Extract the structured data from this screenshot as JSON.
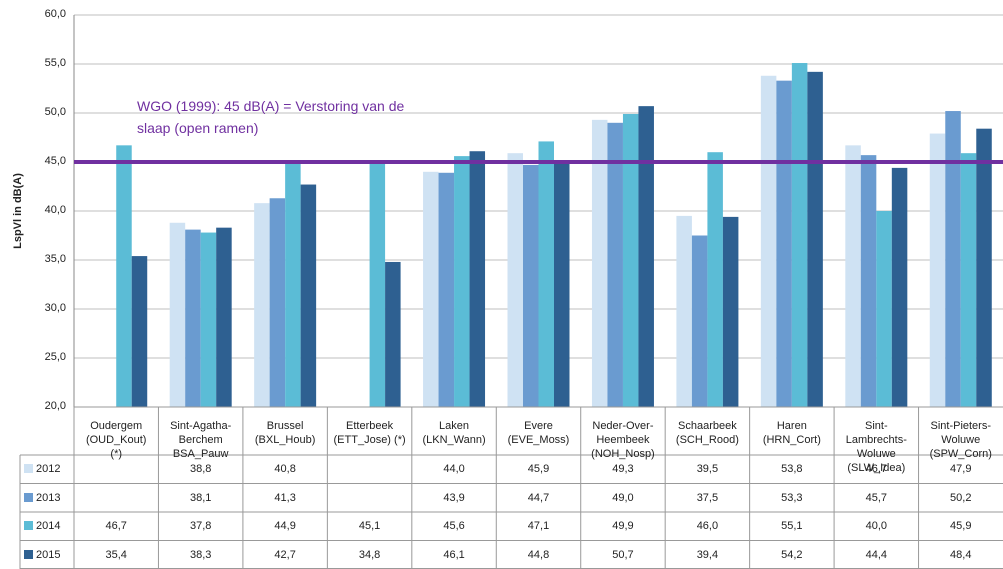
{
  "chart_data": {
    "type": "bar",
    "y_label": "LspVl in dB(A)",
    "categories": [
      "Oudergem\n(OUD_Kout)\n(*)",
      "Sint-Agatha-\nBerchem\nBSA_Pauw",
      "Brussel\n(BXL_Houb)",
      "Etterbeek\n(ETT_Jose) (*)",
      "Laken\n(LKN_Wann)",
      "Evere\n(EVE_Moss)",
      "Neder-Over-\nHeembeek\n(NOH_Nosp)",
      "Schaarbeek\n(SCH_Rood)",
      "Haren\n(HRN_Cort)",
      "Sint-\nLambrechts-\nWoluwe\n(SLW_Idea)",
      "Sint-Pieters-\nWoluwe\n(SPW_Corn)"
    ],
    "series": [
      {
        "name": "2012",
        "color": "#cfe2f3",
        "values": [
          null,
          38.8,
          40.8,
          null,
          44.0,
          45.9,
          49.3,
          39.5,
          53.8,
          46.7,
          47.9
        ],
        "value_labels": [
          null,
          "38,8",
          "40,8",
          null,
          "44,0",
          "45,9",
          "49,3",
          "39,5",
          "53,8",
          "46,7",
          "47,9"
        ]
      },
      {
        "name": "2013",
        "color": "#6a9bd0",
        "values": [
          null,
          38.1,
          41.3,
          null,
          43.9,
          44.7,
          49.0,
          37.5,
          53.3,
          45.7,
          50.2
        ],
        "value_labels": [
          null,
          "38,1",
          "41,3",
          null,
          "43,9",
          "44,7",
          "49,0",
          "37,5",
          "53,3",
          "45,7",
          "50,2"
        ]
      },
      {
        "name": "2014",
        "color": "#5bbcd6",
        "values": [
          46.7,
          37.8,
          44.9,
          45.1,
          45.6,
          47.1,
          49.9,
          46.0,
          55.1,
          40.0,
          45.9
        ],
        "value_labels": [
          "46,7",
          "37,8",
          "44,9",
          "45,1",
          "45,6",
          "47,1",
          "49,9",
          "46,0",
          "55,1",
          "40,0",
          "45,9"
        ]
      },
      {
        "name": "2015",
        "color": "#2e6091",
        "values": [
          35.4,
          38.3,
          42.7,
          34.8,
          46.1,
          44.8,
          50.7,
          39.4,
          54.2,
          44.4,
          48.4
        ],
        "value_labels": [
          "35,4",
          "38,3",
          "42,7",
          "34,8",
          "46,1",
          "44,8",
          "50,7",
          "39,4",
          "54,2",
          "44,4",
          "48,4"
        ]
      }
    ],
    "ylim": [
      20,
      60
    ],
    "yticks": [
      {
        "value": 20,
        "label": "20,0"
      },
      {
        "value": 25,
        "label": "25,0"
      },
      {
        "value": 30,
        "label": "30,0"
      },
      {
        "value": 35,
        "label": "35,0"
      },
      {
        "value": 40,
        "label": "40,0"
      },
      {
        "value": 45,
        "label": "45,0"
      },
      {
        "value": 50,
        "label": "50,0"
      },
      {
        "value": 55,
        "label": "55,0"
      },
      {
        "value": 60,
        "label": "60,0"
      }
    ],
    "grid": true,
    "reference_line": {
      "value": 45,
      "color": "#7030a0",
      "label": "WGO (1999): 45 dB(A) = Verstoring van de\nslaap (open ramen)"
    }
  }
}
